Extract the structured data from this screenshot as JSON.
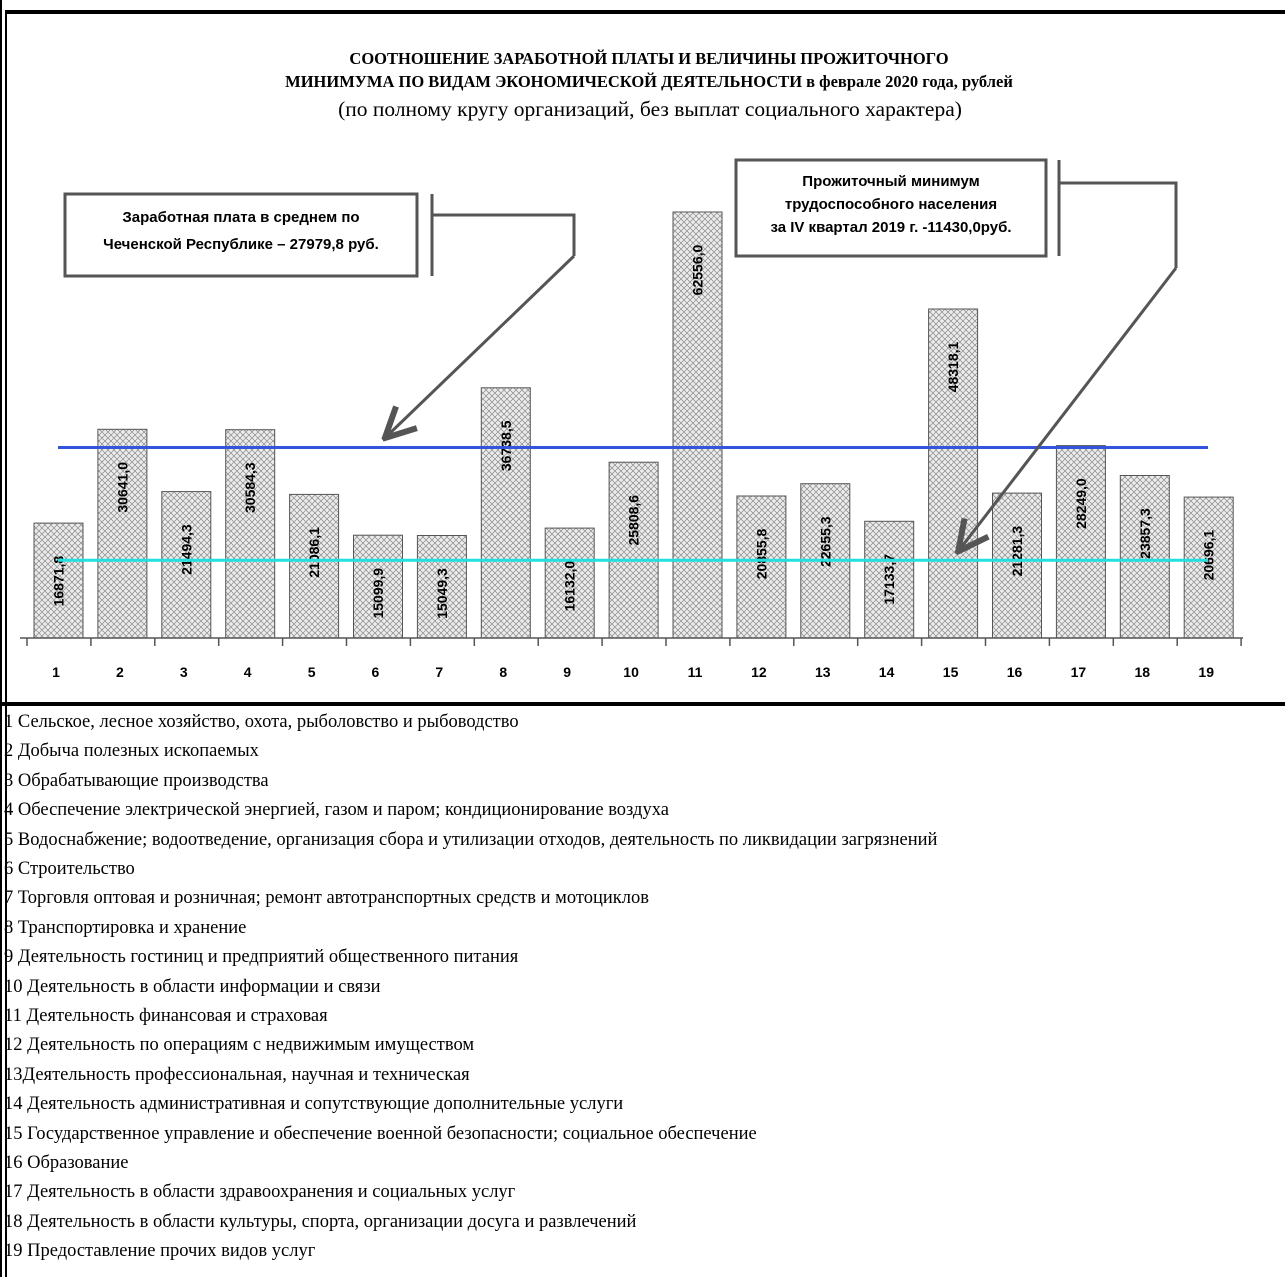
{
  "chart_data": {
    "type": "bar",
    "title_line1": "СООТНОШЕНИЕ ЗАРАБОТНОЙ ПЛАТЫ И ВЕЛИЧИНЫ ПРОЖИТОЧНОГО",
    "title_line2": "МИНИМУМА ПО ВИДАМ ЭКОНОМИЧЕСКОЙ ДЕЯТЕЛЬНОСТИ в феврале 2020 года, рублей",
    "subtitle": "(по полному кругу организаций, без выплат социального характера)",
    "categories": [
      "1",
      "2",
      "3",
      "4",
      "5",
      "6",
      "7",
      "8",
      "9",
      "10",
      "11",
      "12",
      "13",
      "14",
      "15",
      "16",
      "17",
      "18",
      "19"
    ],
    "values": [
      16871.8,
      30641.0,
      21494.3,
      30584.3,
      21086.1,
      15099.9,
      15049.3,
      36738.5,
      16132.0,
      25808.6,
      62556.0,
      20855.8,
      22655.3,
      17133.7,
      48318.1,
      21281.3,
      28249.0,
      23857.3,
      20696.1
    ],
    "value_labels": [
      "16871,8",
      "30641,0",
      "21494,3",
      "30584,3",
      "21086,1",
      "15099,9",
      "15049,3",
      "36738,5",
      "16132,0",
      "25808,6",
      "62556,0",
      "20855,8",
      "22655,3",
      "17133,7",
      "48318,1",
      "21281,3",
      "28249,0",
      "23857,3",
      "20696,1"
    ],
    "reference_lines": [
      {
        "value": 27979.8,
        "color": "#3355dd"
      },
      {
        "value": 11430.0,
        "color": "#22e0e0"
      }
    ],
    "callouts": {
      "avg_wage": {
        "line1": "Заработная плата в среднем по",
        "line2": "Чеченской Республике – 27979,8 руб."
      },
      "subsistence": {
        "line1": "Прожиточный минимум",
        "line2": "трудоспособного населения",
        "line3": "за IV квартал 2019 г. -11430,0руб."
      }
    },
    "ylim": [
      0,
      62556.0
    ],
    "grid": false,
    "bar_fill": "crosshatch",
    "bar_color": "#e8e8e8",
    "bar_edge_color": "#555555"
  },
  "legend": [
    "1  Сельское, лесное хозяйство, охота, рыболовство и рыбоводство",
    "2  Добыча полезных ископаемых",
    "3  Обрабатывающие производства",
    "4  Обеспечение электрической энергией, газом и паром; кондиционирование воздуха",
    "5  Водоснабжение; водоотведение, организация сбора и утилизации отходов, деятельность по ликвидации загрязнений",
    "6  Строительство",
    "7 Торговля оптовая и розничная; ремонт автотранспортных средств и мотоциклов",
    "8  Транспортировка и хранение",
    "9  Деятельность гостиниц и предприятий общественного питания",
    "10 Деятельность в области информации и связи",
    "11 Деятельность финансовая и страховая",
    "12 Деятельность по операциям с недвижимым имуществом",
    "13Деятельность профессиональная, научная и техническая",
    "14 Деятельность административная и сопутствующие дополнительные услуги",
    "15 Государственное управление и обеспечение военной безопасности; социальное обеспечение",
    "16 Образование",
    "17 Деятельность в области здравоохранения и социальных услуг",
    "18 Деятельность в области культуры, спорта, организации досуга и развлечений",
    "19  Предоставление прочих видов услуг"
  ]
}
